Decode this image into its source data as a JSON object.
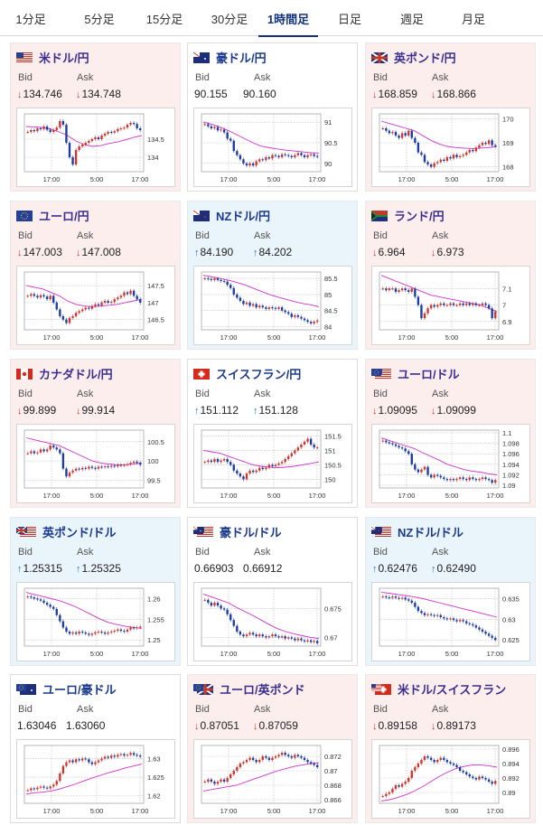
{
  "tabs": [
    {
      "label": "1分足"
    },
    {
      "label": "5分足"
    },
    {
      "label": "15分足"
    },
    {
      "label": "30分足"
    },
    {
      "label": "1時間足",
      "active": true
    },
    {
      "label": "日足"
    },
    {
      "label": "週足"
    },
    {
      "label": "月足"
    }
  ],
  "labels": {
    "bid": "Bid",
    "ask": "Ask"
  },
  "colors": {
    "up_arrow": "#1f78c8",
    "down_arrow": "#d2332b",
    "candle_up": "#d2332b",
    "candle_down": "#1a3aa8",
    "moving_average": "#cc33cc",
    "trend_line": "#33aacc"
  },
  "cards": [
    {
      "pair": "米ドル/円",
      "flag": "US",
      "bg": "pink",
      "trend": "down",
      "bid": "134.746",
      "ask": "134.748",
      "x_ticks": [
        "17:00",
        "5:00",
        "17:00"
      ],
      "y_ticks": [
        "134.5",
        "134"
      ],
      "y_range": [
        133.6,
        135.2
      ],
      "candles": [
        134.7,
        134.75,
        134.72,
        134.8,
        134.78,
        134.85,
        134.76,
        134.7,
        134.75,
        134.82,
        135.0,
        134.9,
        134.4,
        134.0,
        133.8,
        134.2,
        134.3,
        134.35,
        134.4,
        134.45,
        134.5,
        134.55,
        134.5,
        134.6,
        134.65,
        134.7,
        134.68,
        134.72,
        134.78,
        134.8,
        134.82,
        134.9,
        134.95,
        134.92,
        134.8,
        134.75
      ],
      "ma": [
        134.85,
        134.84,
        134.82,
        134.78,
        134.7,
        134.6,
        134.45,
        134.35,
        134.3,
        134.32,
        134.38,
        134.42,
        134.48,
        134.55,
        134.6
      ]
    },
    {
      "pair": "豪ドル/円",
      "flag": "AU",
      "bg": "white",
      "trend": "none",
      "bid": "90.155",
      "ask": "90.160",
      "x_ticks": [
        "17:00",
        "5:00",
        "17:00"
      ],
      "y_ticks": [
        "91",
        "90.5",
        "90"
      ],
      "y_range": [
        89.8,
        91.2
      ],
      "candles": [
        90.95,
        90.9,
        90.85,
        90.88,
        90.8,
        90.82,
        90.75,
        90.6,
        90.55,
        90.3,
        90.2,
        90.1,
        90.0,
        89.95,
        90.0,
        89.95,
        90.05,
        90.1,
        90.08,
        90.15,
        90.12,
        90.2,
        90.18,
        90.15,
        90.22,
        90.2,
        90.18,
        90.15,
        90.2,
        90.25,
        90.2,
        90.15,
        90.2,
        90.22,
        90.18,
        90.16
      ],
      "ma": [
        91.0,
        90.95,
        90.88,
        90.8,
        90.7,
        90.6,
        90.5,
        90.42,
        90.38,
        90.35,
        90.32,
        90.3,
        90.28,
        90.26,
        90.25
      ]
    },
    {
      "pair": "英ポンド/円",
      "flag": "GB",
      "bg": "pink",
      "trend": "down",
      "bid": "168.859",
      "ask": "168.866",
      "x_ticks": [
        "17:00",
        "5:00",
        "17:00"
      ],
      "y_ticks": [
        "170",
        "169",
        "168"
      ],
      "y_range": [
        167.8,
        170.2
      ],
      "candles": [
        169.6,
        169.5,
        169.4,
        169.45,
        169.3,
        169.2,
        169.4,
        169.3,
        169.5,
        169.2,
        169.0,
        168.6,
        168.5,
        168.2,
        168.1,
        168.0,
        168.15,
        168.2,
        168.3,
        168.25,
        168.4,
        168.35,
        168.5,
        168.4,
        168.45,
        168.5,
        168.6,
        168.7,
        168.65,
        168.8,
        168.9,
        169.0,
        168.95,
        169.1,
        168.9,
        168.86
      ],
      "ma": [
        169.9,
        169.8,
        169.7,
        169.6,
        169.5,
        169.3,
        169.1,
        168.95,
        168.85,
        168.8,
        168.78,
        168.76,
        168.78,
        168.8,
        168.85
      ]
    },
    {
      "pair": "ユーロ/円",
      "flag": "EU",
      "bg": "pink",
      "trend": "down",
      "bid": "147.003",
      "ask": "147.008",
      "x_ticks": [
        "17:00",
        "5:00",
        "17:00"
      ],
      "y_ticks": [
        "147.5",
        "147",
        "146.5"
      ],
      "y_range": [
        146.2,
        147.9
      ],
      "candles": [
        147.2,
        147.25,
        147.2,
        147.15,
        147.22,
        147.18,
        147.1,
        147.2,
        147.0,
        146.8,
        146.6,
        146.5,
        146.4,
        146.55,
        146.6,
        146.7,
        146.75,
        146.8,
        146.85,
        146.82,
        146.9,
        146.95,
        146.92,
        147.0,
        147.05,
        147.0,
        147.02,
        147.1,
        147.15,
        147.2,
        147.3,
        147.25,
        147.35,
        147.2,
        147.1,
        147.0
      ],
      "ma": [
        147.5,
        147.45,
        147.4,
        147.3,
        147.2,
        147.05,
        146.95,
        146.9,
        146.88,
        146.9,
        146.92,
        146.95,
        147.0,
        147.05,
        147.1
      ]
    },
    {
      "pair": "NZドル/円",
      "flag": "NZ",
      "bg": "blue",
      "trend": "up",
      "bid": "84.190",
      "ask": "84.202",
      "x_ticks": [
        "17:00",
        "5:00",
        "17:00"
      ],
      "y_ticks": [
        "85.5",
        "85",
        "84.5",
        "84"
      ],
      "y_range": [
        83.9,
        85.7
      ],
      "candles": [
        85.5,
        85.48,
        85.45,
        85.5,
        85.45,
        85.42,
        85.4,
        85.3,
        85.2,
        85.0,
        84.9,
        84.8,
        84.7,
        84.75,
        84.65,
        84.7,
        84.6,
        84.65,
        84.6,
        84.55,
        84.6,
        84.58,
        84.55,
        84.6,
        84.5,
        84.45,
        84.4,
        84.3,
        84.35,
        84.3,
        84.25,
        84.2,
        84.15,
        84.1,
        84.15,
        84.19
      ],
      "ma": [
        85.6,
        85.55,
        85.5,
        85.45,
        85.38,
        85.3,
        85.2,
        85.1,
        85.0,
        84.92,
        84.85,
        84.78,
        84.72,
        84.68,
        84.62
      ]
    },
    {
      "pair": "ランド/円",
      "flag": "ZA",
      "bg": "pink",
      "trend": "down",
      "bid": "6.964",
      "ask": "6.973",
      "x_ticks": [
        "17:00",
        "5:00",
        "17:00"
      ],
      "y_ticks": [
        "7.1",
        "7",
        "6.9"
      ],
      "y_range": [
        6.85,
        7.2
      ],
      "candles": [
        7.1,
        7.09,
        7.1,
        7.1,
        7.08,
        7.09,
        7.1,
        7.09,
        7.08,
        7.1,
        7.05,
        7.0,
        6.92,
        6.95,
        6.98,
        7.0,
        6.99,
        7.0,
        7.01,
        7.0,
        7.0,
        7.01,
        7.0,
        7.0,
        7.01,
        7.0,
        7.01,
        7.0,
        7.01,
        7.0,
        7.0,
        7.01,
        7.0,
        6.98,
        6.92,
        6.96
      ],
      "ma": [
        7.18,
        7.16,
        7.14,
        7.12,
        7.1,
        7.08,
        7.06,
        7.05,
        7.04,
        7.03,
        7.02,
        7.01,
        7.0,
        6.98,
        6.96
      ]
    },
    {
      "pair": "カナダドル/円",
      "flag": "CA",
      "bg": "pink",
      "trend": "down",
      "bid": "99.899",
      "ask": "99.914",
      "x_ticks": [
        "17:00",
        "5:00",
        "17:00"
      ],
      "y_ticks": [
        "100.5",
        "100",
        "99.5"
      ],
      "y_range": [
        99.3,
        100.8
      ],
      "candles": [
        100.2,
        100.25,
        100.2,
        100.22,
        100.3,
        100.25,
        100.3,
        100.4,
        100.35,
        100.3,
        100.2,
        99.8,
        99.6,
        99.7,
        99.75,
        99.8,
        99.78,
        99.82,
        99.8,
        99.85,
        99.82,
        99.8,
        99.85,
        99.84,
        99.86,
        99.85,
        99.88,
        99.86,
        99.9,
        99.88,
        99.9,
        99.92,
        99.95,
        99.98,
        99.95,
        99.9
      ],
      "ma": [
        100.6,
        100.55,
        100.5,
        100.45,
        100.4,
        100.3,
        100.2,
        100.1,
        100.0,
        99.95,
        99.92,
        99.9,
        99.9,
        99.92,
        99.95
      ]
    },
    {
      "pair": "スイスフラン/円",
      "flag": "CH",
      "bg": "white",
      "trend": "up",
      "bid": "151.112",
      "ask": "151.128",
      "x_ticks": [
        "17:00",
        "5:00",
        "17:00"
      ],
      "y_ticks": [
        "151.5",
        "151",
        "150.5",
        "150"
      ],
      "y_range": [
        149.7,
        151.7
      ],
      "candles": [
        150.6,
        150.65,
        150.6,
        150.7,
        150.6,
        150.65,
        150.7,
        150.6,
        150.5,
        150.3,
        150.2,
        150.1,
        150.0,
        150.2,
        150.3,
        150.25,
        150.3,
        150.4,
        150.35,
        150.4,
        150.5,
        150.45,
        150.5,
        150.55,
        150.6,
        150.7,
        150.8,
        150.9,
        151.0,
        151.1,
        151.2,
        151.3,
        151.4,
        151.2,
        151.1,
        151.1
      ],
      "ma": [
        151.0,
        150.95,
        150.9,
        150.8,
        150.7,
        150.6,
        150.5,
        150.45,
        150.42,
        150.4,
        150.42,
        150.45,
        150.5,
        150.55,
        150.6
      ]
    },
    {
      "pair": "ユーロ/ドル",
      "flag": "EU-US",
      "bg": "pink",
      "trend": "down",
      "bid": "1.09095",
      "ask": "1.09099",
      "x_ticks": [
        "17:00",
        "5:00",
        "17:00"
      ],
      "y_ticks": [
        "1.1",
        "1.098",
        "1.096",
        "1.094",
        "1.092",
        "1.09"
      ],
      "y_range": [
        1.0895,
        1.1005
      ],
      "candles": [
        1.0985,
        1.0982,
        1.098,
        1.0978,
        1.0975,
        1.0972,
        1.097,
        1.0965,
        1.096,
        1.094,
        1.093,
        1.0925,
        1.093,
        1.0935,
        1.092,
        1.0915,
        1.092,
        1.0918,
        1.0915,
        1.0912,
        1.091,
        1.0912,
        1.091,
        1.0912,
        1.0915,
        1.0912,
        1.091,
        1.0915,
        1.0912,
        1.091,
        1.0912,
        1.0915,
        1.0912,
        1.091,
        1.0905,
        1.091
      ],
      "ma": [
        1.099,
        1.0985,
        1.098,
        1.0975,
        1.097,
        1.0962,
        1.0955,
        1.0948,
        1.094,
        1.0935,
        1.093,
        1.0927,
        1.0925,
        1.0922,
        1.092
      ]
    },
    {
      "pair": "英ポンド/ドル",
      "flag": "GB-US",
      "bg": "blue",
      "trend": "up",
      "bid": "1.25315",
      "ask": "1.25325",
      "x_ticks": [
        "17:00",
        "5:00",
        "17:00"
      ],
      "y_ticks": [
        "1.26",
        "1.255",
        "1.25"
      ],
      "y_range": [
        1.2485,
        1.2625
      ],
      "candles": [
        1.2605,
        1.2603,
        1.26,
        1.2598,
        1.2595,
        1.259,
        1.2585,
        1.258,
        1.2575,
        1.256,
        1.2545,
        1.253,
        1.252,
        1.2515,
        1.2518,
        1.2515,
        1.252,
        1.2518,
        1.2515,
        1.2512,
        1.2515,
        1.2518,
        1.252,
        1.2518,
        1.2515,
        1.2518,
        1.252,
        1.2522,
        1.2525,
        1.2522,
        1.252,
        1.2525,
        1.253,
        1.2528,
        1.253,
        1.2532
      ],
      "ma": [
        1.2615,
        1.261,
        1.2605,
        1.26,
        1.2595,
        1.2588,
        1.258,
        1.257,
        1.256,
        1.255,
        1.2542,
        1.2537,
        1.2533,
        1.253,
        1.2528
      ]
    },
    {
      "pair": "豪ドル/ドル",
      "flag": "AU-US",
      "bg": "white",
      "trend": "none",
      "bid": "0.66903",
      "ask": "0.66912",
      "x_ticks": [
        "17:00",
        "5:00",
        "17:00"
      ],
      "y_ticks": [
        "0.675",
        "0.67"
      ],
      "y_range": [
        0.6685,
        0.6785
      ],
      "candles": [
        0.6765,
        0.676,
        0.6755,
        0.676,
        0.6755,
        0.675,
        0.6748,
        0.674,
        0.673,
        0.672,
        0.671,
        0.6705,
        0.6702,
        0.6705,
        0.6708,
        0.6705,
        0.6702,
        0.6705,
        0.6702,
        0.67,
        0.6702,
        0.6705,
        0.6702,
        0.67,
        0.6702,
        0.6698,
        0.67,
        0.6698,
        0.6695,
        0.6698,
        0.6695,
        0.6693,
        0.6695,
        0.6692,
        0.6694,
        0.669
      ],
      "ma": [
        0.6775,
        0.677,
        0.6765,
        0.676,
        0.6752,
        0.6745,
        0.6738,
        0.673,
        0.6722,
        0.6715,
        0.671,
        0.6706,
        0.6703,
        0.67,
        0.6698
      ]
    },
    {
      "pair": "NZドル/ドル",
      "flag": "NZ-US",
      "bg": "blue",
      "trend": "up",
      "bid": "0.62476",
      "ask": "0.62490",
      "x_ticks": [
        "17:00",
        "5:00",
        "17:00"
      ],
      "y_ticks": [
        "0.635",
        "0.63",
        "0.625"
      ],
      "y_range": [
        0.6235,
        0.6375
      ],
      "candles": [
        0.6355,
        0.6353,
        0.6352,
        0.6355,
        0.6352,
        0.635,
        0.6352,
        0.6348,
        0.6345,
        0.634,
        0.633,
        0.632,
        0.6315,
        0.631,
        0.6312,
        0.631,
        0.6308,
        0.631,
        0.6305,
        0.6302,
        0.63,
        0.6302,
        0.6298,
        0.6295,
        0.6298,
        0.6295,
        0.629,
        0.6288,
        0.6285,
        0.628,
        0.6275,
        0.627,
        0.6265,
        0.626,
        0.6255,
        0.625
      ],
      "ma": [
        0.6365,
        0.6363,
        0.636,
        0.6357,
        0.6354,
        0.635,
        0.6345,
        0.634,
        0.6335,
        0.633,
        0.6325,
        0.632,
        0.6315,
        0.631,
        0.6305
      ]
    },
    {
      "pair": "ユーロ/豪ドル",
      "flag": "EU-AU",
      "bg": "white",
      "trend": "none",
      "bid": "1.63046",
      "ask": "1.63060",
      "x_ticks": [
        "17:00",
        "5:00",
        "17:00"
      ],
      "y_ticks": [
        "1.63",
        "1.625",
        "1.62"
      ],
      "y_range": [
        1.618,
        1.6335
      ],
      "candles": [
        1.6215,
        1.622,
        1.6218,
        1.6222,
        1.6225,
        1.6222,
        1.622,
        1.6225,
        1.623,
        1.624,
        1.626,
        1.628,
        1.629,
        1.6295,
        1.629,
        1.6298,
        1.6295,
        1.63,
        1.6298,
        1.629,
        1.6285,
        1.629,
        1.6295,
        1.63,
        1.6305,
        1.6302,
        1.6308,
        1.6305,
        1.631,
        1.6312,
        1.6308,
        1.631,
        1.6315,
        1.631,
        1.6308,
        1.6305
      ],
      "ma": [
        1.6205,
        1.6208,
        1.621,
        1.6213,
        1.6218,
        1.6225,
        1.6232,
        1.624,
        1.6248,
        1.6255,
        1.6262,
        1.6268,
        1.6275,
        1.628,
        1.6285
      ]
    },
    {
      "pair": "ユーロ/英ポンド",
      "flag": "EU-GB",
      "bg": "pink",
      "trend": "down",
      "bid": "0.87051",
      "ask": "0.87059",
      "x_ticks": [
        "17:00",
        "5:00",
        "17:00"
      ],
      "y_ticks": [
        "0.872",
        "0.87",
        "0.868",
        "0.866"
      ],
      "y_range": [
        0.8655,
        0.8735
      ],
      "candles": [
        0.8685,
        0.8688,
        0.8685,
        0.8682,
        0.8685,
        0.8688,
        0.8685,
        0.869,
        0.8695,
        0.87,
        0.8705,
        0.871,
        0.8712,
        0.8715,
        0.8718,
        0.8715,
        0.8712,
        0.8715,
        0.872,
        0.8718,
        0.8715,
        0.8718,
        0.872,
        0.8722,
        0.8725,
        0.8722,
        0.872,
        0.8718,
        0.8722,
        0.872,
        0.8718,
        0.8715,
        0.8712,
        0.871,
        0.8708,
        0.8705
      ],
      "ma": [
        0.8672,
        0.8674,
        0.8676,
        0.8678,
        0.868,
        0.8684,
        0.8688,
        0.8692,
        0.8696,
        0.87,
        0.8703,
        0.8706,
        0.8708,
        0.871,
        0.8711
      ]
    },
    {
      "pair": "米ドル/スイスフラン",
      "flag": "US-CH",
      "bg": "pink",
      "trend": "down",
      "bid": "0.89158",
      "ask": "0.89173",
      "x_ticks": [
        "17:00",
        "5:00",
        "17:00"
      ],
      "y_ticks": [
        "0.896",
        "0.894",
        "0.892",
        "0.89"
      ],
      "y_range": [
        0.8885,
        0.8965
      ],
      "candles": [
        0.8895,
        0.8898,
        0.89,
        0.8905,
        0.891,
        0.8908,
        0.8912,
        0.8915,
        0.892,
        0.893,
        0.8935,
        0.894,
        0.8945,
        0.895,
        0.8948,
        0.8945,
        0.8942,
        0.8945,
        0.8948,
        0.8945,
        0.8942,
        0.894,
        0.8938,
        0.8935,
        0.893,
        0.8928,
        0.8925,
        0.8922,
        0.892,
        0.8918,
        0.8922,
        0.892,
        0.8918,
        0.8915,
        0.8912,
        0.8916
      ],
      "ma": [
        0.8888,
        0.889,
        0.8893,
        0.8897,
        0.8902,
        0.8908,
        0.8915,
        0.8922,
        0.8928,
        0.8933,
        0.8936,
        0.8938,
        0.8938,
        0.8937,
        0.8935
      ]
    }
  ]
}
